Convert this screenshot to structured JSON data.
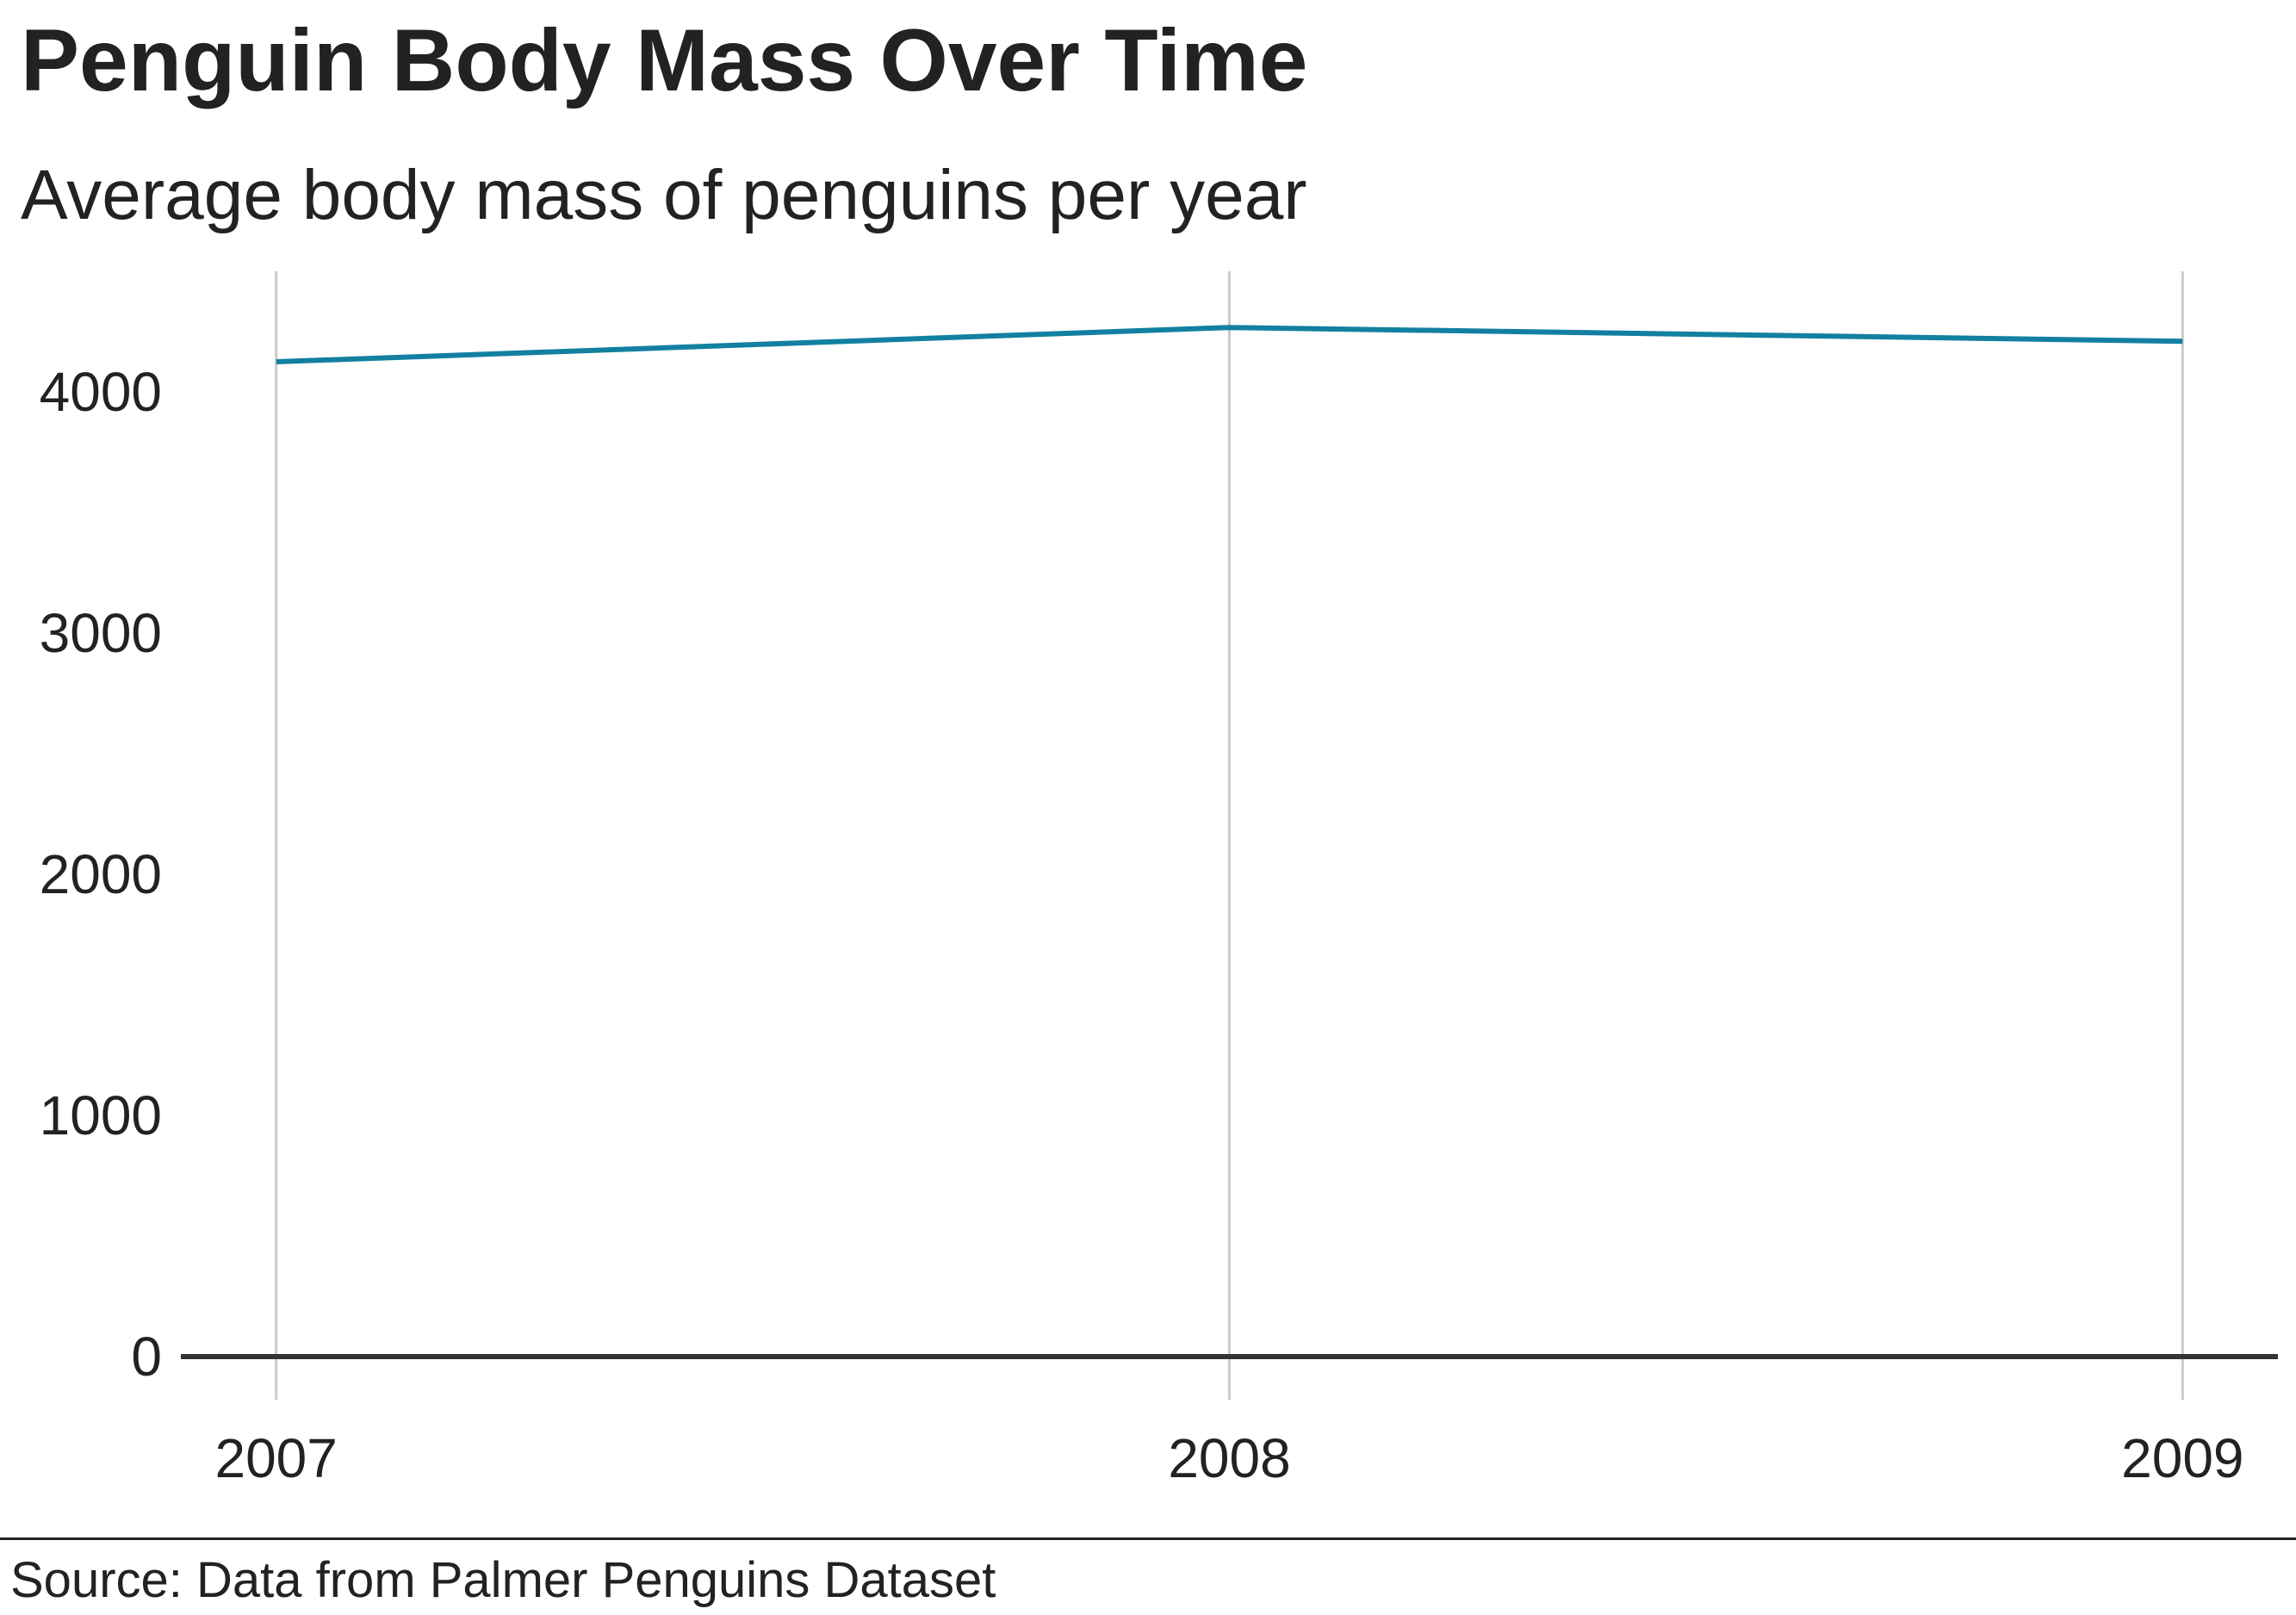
{
  "header": {
    "title": "Penguin Body Mass Over Time",
    "subtitle": "Average body mass of penguins per year"
  },
  "footer": {
    "source": "Source: Data from Palmer Penguins Dataset"
  },
  "chart_data": {
    "type": "line",
    "title": "Penguin Body Mass Over Time",
    "subtitle": "Average body mass of penguins per year",
    "xlabel": "",
    "ylabel": "",
    "x": [
      2007,
      2008,
      2009
    ],
    "x_tick_labels": [
      "2007",
      "2008",
      "2009"
    ],
    "y_tick_labels": [
      "0",
      "1000",
      "2000",
      "3000",
      "4000"
    ],
    "y_ticks": [
      0,
      1000,
      2000,
      3000,
      4000
    ],
    "ylim": [
      0,
      4500
    ],
    "xlim": [
      2006.9,
      2009.1
    ],
    "series": [
      {
        "values": [
          4125,
          4267,
          4210
        ],
        "color": "#1380a1"
      }
    ],
    "grid": {
      "vertical": true,
      "horizontal": false
    },
    "legend": "none",
    "colors": {
      "line": "#1380a1",
      "grid": "#cbcbcb",
      "baseline": "#333333"
    }
  }
}
